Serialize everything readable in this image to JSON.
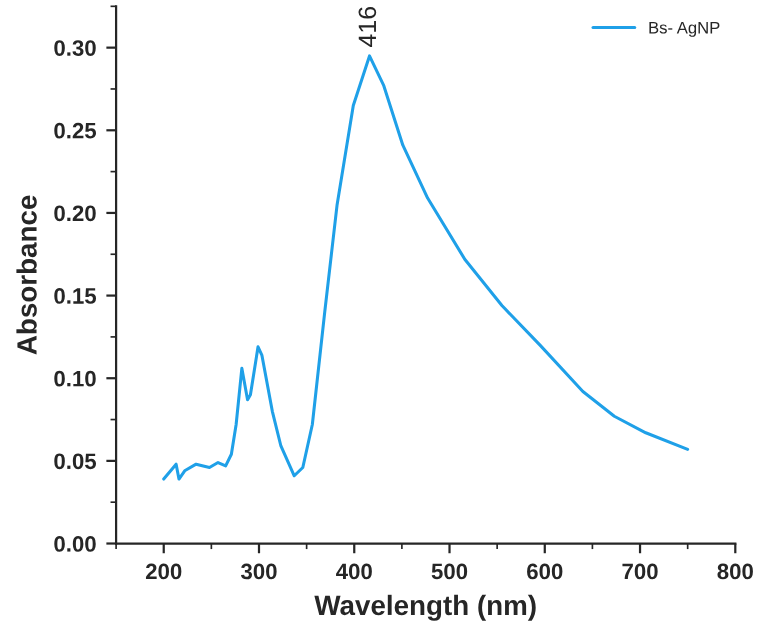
{
  "chart_data": {
    "type": "line",
    "xlabel": "Wavelength (nm)",
    "ylabel": "Absorbance",
    "xlim": [
      150,
      800
    ],
    "xticks": [
      200,
      300,
      400,
      500,
      600,
      700,
      800
    ],
    "ylim": [
      0,
      0.325
    ],
    "yticks": [
      {
        "value": 0,
        "label": "0.00"
      },
      0.05,
      {
        "value": 0.1,
        "label": "0.10"
      },
      0.15,
      {
        "value": 0.2,
        "label": "0.20"
      },
      0.25,
      {
        "value": 0.3,
        "label": "0.30"
      }
    ],
    "grid": false,
    "legend": "top right",
    "marker": "none",
    "line_style": "solid",
    "annotations": [
      {
        "text": "416",
        "x": 416,
        "y": 0.295
      }
    ],
    "series": [
      {
        "name": "Bs- AgNP",
        "color": "#1fa0e8",
        "x": [
          200,
          213,
          216,
          222,
          234,
          248,
          257,
          265,
          271,
          276,
          282,
          288,
          291,
          299,
          303,
          314,
          323,
          337,
          346,
          356,
          369,
          382,
          399,
          416,
          431,
          451,
          477,
          516,
          555,
          595,
          640,
          673,
          706,
          750
        ],
        "values": [
          0.039,
          0.048,
          0.039,
          0.044,
          0.048,
          0.046,
          0.049,
          0.047,
          0.054,
          0.072,
          0.106,
          0.087,
          0.09,
          0.119,
          0.114,
          0.08,
          0.059,
          0.041,
          0.046,
          0.072,
          0.14,
          0.205,
          0.265,
          0.295,
          0.277,
          0.241,
          0.209,
          0.172,
          0.144,
          0.12,
          0.092,
          0.077,
          0.067,
          0.057
        ]
      }
    ]
  }
}
